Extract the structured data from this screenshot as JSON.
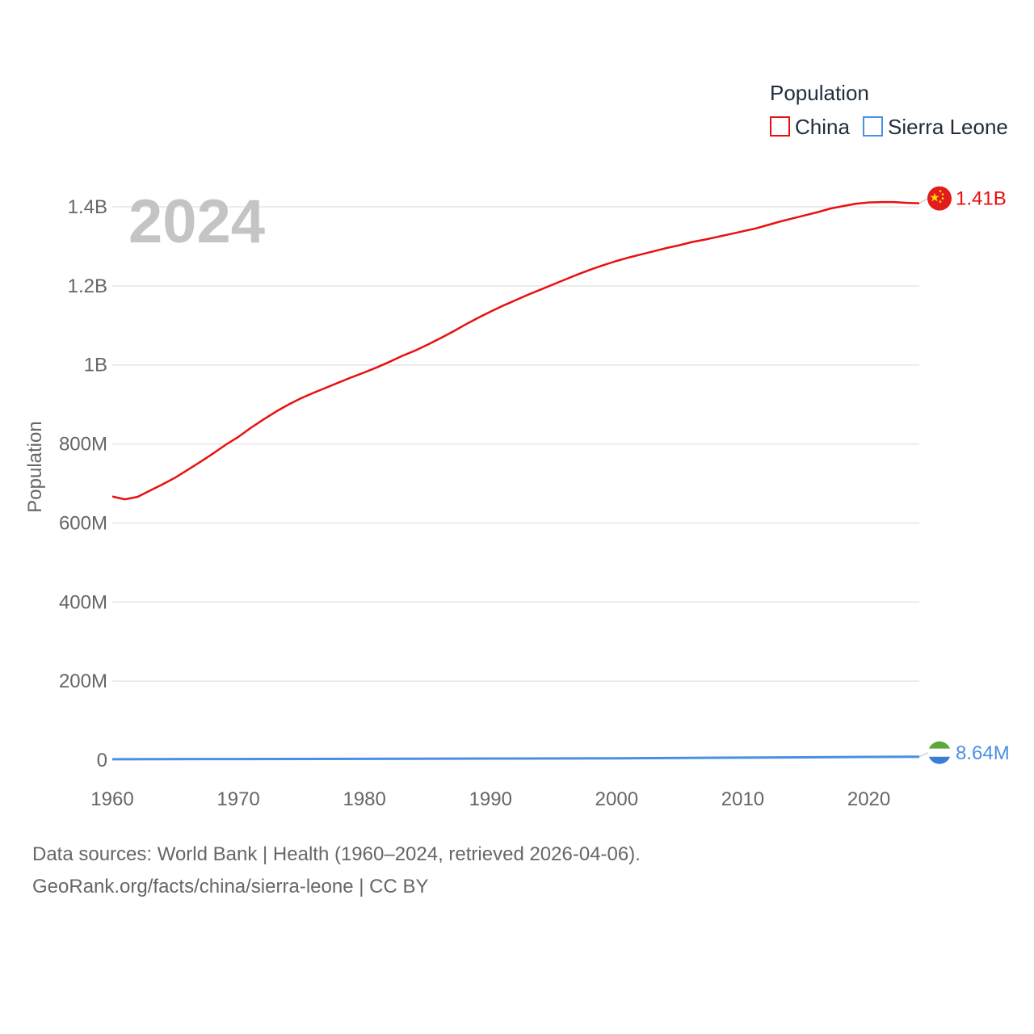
{
  "chart_data": {
    "type": "line",
    "title": "",
    "legend_title": "Population",
    "legend_position": "top-right",
    "ylabel": "Population",
    "xlabel": "",
    "xlim": [
      1960,
      2024
    ],
    "ylim": [
      0,
      1400000000
    ],
    "x_ticks": [
      1960,
      1970,
      1980,
      1990,
      2000,
      2010,
      2020
    ],
    "y_ticks": [
      {
        "value": 0,
        "label": "0"
      },
      {
        "value": 200000000,
        "label": "200M"
      },
      {
        "value": 400000000,
        "label": "400M"
      },
      {
        "value": 600000000,
        "label": "600M"
      },
      {
        "value": 800000000,
        "label": "800M"
      },
      {
        "value": 1000000000,
        "label": "1B"
      },
      {
        "value": 1200000000,
        "label": "1.2B"
      },
      {
        "value": 1400000000,
        "label": "1.4B"
      }
    ],
    "grid": true,
    "current_year": "2024",
    "series": [
      {
        "name": "China",
        "color": "#e8100f",
        "end_label": "1.41B",
        "flag_icon": "china-flag-icon",
        "x": [
          1960,
          1961,
          1962,
          1963,
          1964,
          1965,
          1966,
          1967,
          1968,
          1969,
          1970,
          1971,
          1972,
          1973,
          1974,
          1975,
          1976,
          1977,
          1978,
          1979,
          1980,
          1981,
          1982,
          1983,
          1984,
          1985,
          1986,
          1987,
          1988,
          1989,
          1990,
          1991,
          1992,
          1993,
          1994,
          1995,
          1996,
          1997,
          1998,
          1999,
          2000,
          2001,
          2002,
          2003,
          2004,
          2005,
          2006,
          2007,
          2008,
          2009,
          2010,
          2011,
          2012,
          2013,
          2014,
          2015,
          2016,
          2017,
          2018,
          2019,
          2020,
          2021,
          2022,
          2023,
          2024
        ],
        "values": [
          667000000,
          660000000,
          666000000,
          682000000,
          698000000,
          715000000,
          735000000,
          755000000,
          776000000,
          798000000,
          818000000,
          841000000,
          862000000,
          882000000,
          900000000,
          916000000,
          930000000,
          943000000,
          956000000,
          969000000,
          981000000,
          994000000,
          1008000000,
          1023000000,
          1036000000,
          1051000000,
          1067000000,
          1084000000,
          1102000000,
          1119000000,
          1135000000,
          1150000000,
          1164000000,
          1178000000,
          1191000000,
          1204000000,
          1217000000,
          1230000000,
          1242000000,
          1253000000,
          1263000000,
          1272000000,
          1280000000,
          1288000000,
          1296000000,
          1303000000,
          1311000000,
          1317000000,
          1324000000,
          1331000000,
          1338000000,
          1345000000,
          1354000000,
          1363000000,
          1371000000,
          1379000000,
          1387000000,
          1396000000,
          1402000000,
          1408000000,
          1411000000,
          1412000000,
          1412000000,
          1410000000,
          1409000000
        ]
      },
      {
        "name": "Sierra Leone",
        "color": "#4a90e2",
        "end_label": "8.64M",
        "flag_icon": "sierra-leone-flag-icon",
        "x": [
          1960,
          1970,
          1980,
          1990,
          2000,
          2010,
          2020,
          2024
        ],
        "values": [
          2300000,
          2800000,
          3300000,
          4100000,
          4600000,
          6400000,
          8200000,
          8640000
        ]
      }
    ]
  },
  "footer": {
    "sources": "Data sources: World Bank | Health (1960–2024, retrieved 2026-04-06).",
    "credit": "GeoRank.org/facts/china/sierra-leone | CC BY"
  }
}
